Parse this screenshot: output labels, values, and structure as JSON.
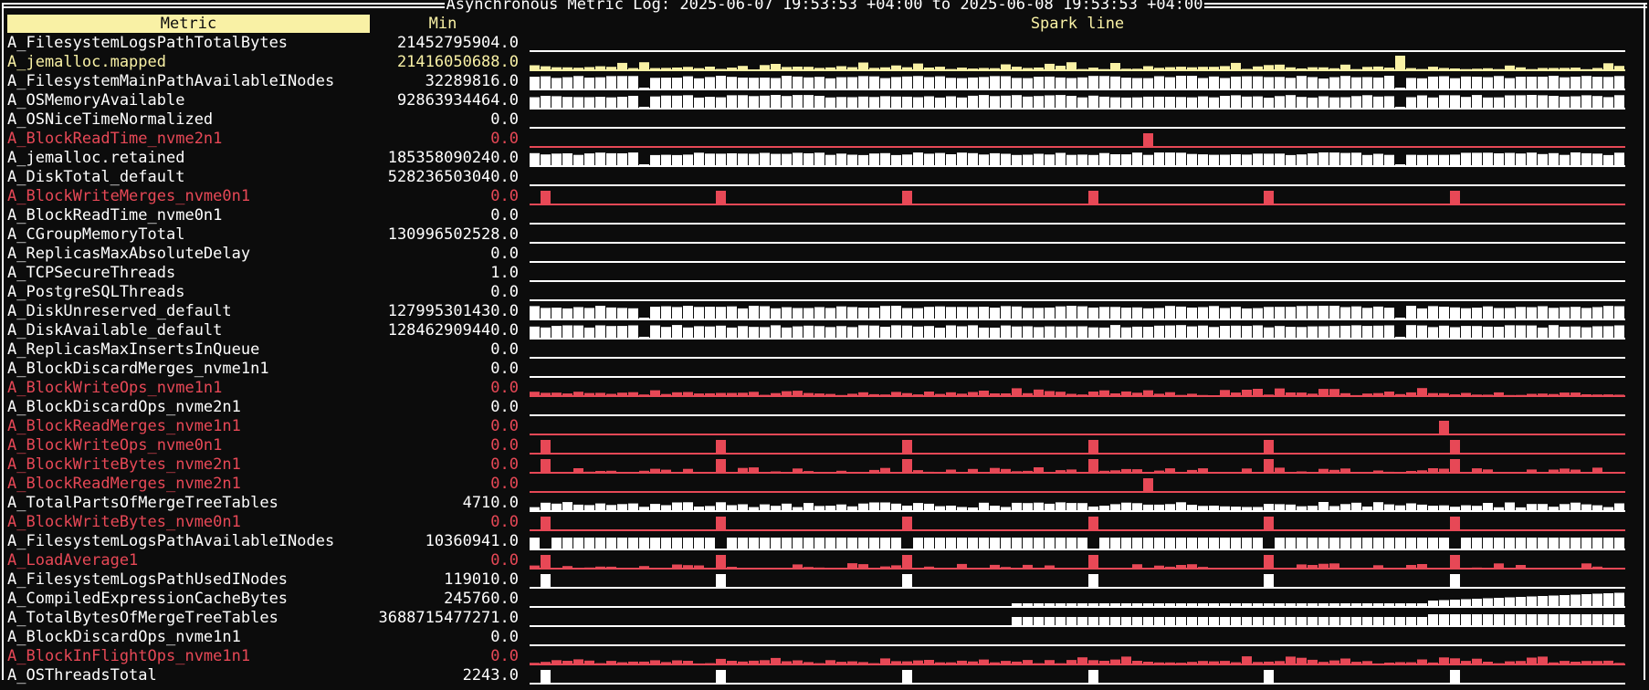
{
  "window": {
    "title": "Asynchronous Metric Log: 2025-06-07 19:53:53 +04:00 to 2025-06-08 19:53:53 +04:00"
  },
  "columns": {
    "metric": "Metric",
    "min": "Min",
    "spark": "Spark line"
  },
  "colors": {
    "background": "#0c0c0c",
    "white": "#ffffff",
    "red": "#e74856",
    "yellow": "#f9f1a5"
  },
  "rows": [
    {
      "name": "A_FilesystemLogsPathTotalBytes",
      "min": "21452795904.0",
      "color": "white",
      "spark": "flat"
    },
    {
      "name": "A_jemalloc.mapped",
      "min": "21416050688.0",
      "color": "yellow",
      "spark": "noise-low-spike"
    },
    {
      "name": "A_FilesystemMainPathAvailableINodes",
      "min": "32289816.0",
      "color": "white",
      "spark": "full-dip"
    },
    {
      "name": "A_OSMemoryAvailable",
      "min": "92863934464.0",
      "color": "white",
      "spark": "full-dip"
    },
    {
      "name": "A_OSNiceTimeNormalized",
      "min": "0.0",
      "color": "white",
      "spark": "flat"
    },
    {
      "name": "A_BlockReadTime_nvme2n1",
      "min": "0.0",
      "color": "red",
      "spark": "single-spike"
    },
    {
      "name": "A_jemalloc.retained",
      "min": "185358090240.0",
      "color": "white",
      "spark": "full-dip"
    },
    {
      "name": "A_DiskTotal_default",
      "min": "528236503040.0",
      "color": "white",
      "spark": "flat"
    },
    {
      "name": "A_BlockWriteMerges_nvme0n1",
      "min": "0.0",
      "color": "red",
      "spark": "periodic-spikes"
    },
    {
      "name": "A_BlockReadTime_nvme0n1",
      "min": "0.0",
      "color": "white",
      "spark": "flat"
    },
    {
      "name": "A_CGroupMemoryTotal",
      "min": "130996502528.0",
      "color": "white",
      "spark": "flat"
    },
    {
      "name": "A_ReplicasMaxAbsoluteDelay",
      "min": "0.0",
      "color": "white",
      "spark": "flat"
    },
    {
      "name": "A_TCPSecureThreads",
      "min": "1.0",
      "color": "white",
      "spark": "flat"
    },
    {
      "name": "A_PostgreSQLThreads",
      "min": "0.0",
      "color": "white",
      "spark": "flat"
    },
    {
      "name": "A_DiskUnreserved_default",
      "min": "127995301430.0",
      "color": "white",
      "spark": "full-dip"
    },
    {
      "name": "A_DiskAvailable_default",
      "min": "128462909440.0",
      "color": "white",
      "spark": "full-dip"
    },
    {
      "name": "A_ReplicasMaxInsertsInQueue",
      "min": "0.0",
      "color": "white",
      "spark": "flat"
    },
    {
      "name": "A_BlockDiscardMerges_nvme1n1",
      "min": "0.0",
      "color": "white",
      "spark": "flat"
    },
    {
      "name": "A_BlockWriteOps_nvme1n1",
      "min": "0.0",
      "color": "red",
      "spark": "noise"
    },
    {
      "name": "A_BlockDiscardOps_nvme2n1",
      "min": "0.0",
      "color": "white",
      "spark": "flat"
    },
    {
      "name": "A_BlockReadMerges_nvme1n1",
      "min": "0.0",
      "color": "red",
      "spark": "single-spike-late"
    },
    {
      "name": "A_BlockWriteOps_nvme0n1",
      "min": "0.0",
      "color": "red",
      "spark": "periodic-spikes"
    },
    {
      "name": "A_BlockWriteBytes_nvme2n1",
      "min": "0.0",
      "color": "red",
      "spark": "noise-sparse"
    },
    {
      "name": "A_BlockReadMerges_nvme2n1",
      "min": "0.0",
      "color": "red",
      "spark": "single-spike"
    },
    {
      "name": "A_TotalPartsOfMergeTreeTables",
      "min": "4710.0",
      "color": "white",
      "spark": "noise-mid"
    },
    {
      "name": "A_BlockWriteBytes_nvme0n1",
      "min": "0.0",
      "color": "red",
      "spark": "periodic-spikes"
    },
    {
      "name": "A_FilesystemLogsPathAvailableINodes",
      "min": "10360941.0",
      "color": "white",
      "spark": "full-periodic-dip"
    },
    {
      "name": "A_LoadAverage1",
      "min": "0.0",
      "color": "red",
      "spark": "noise-sparse"
    },
    {
      "name": "A_FilesystemLogsPathUsedINodes",
      "min": "119010.0",
      "color": "white",
      "spark": "periodic-spikes"
    },
    {
      "name": "A_CompiledExpressionCacheBytes",
      "min": "245760.0",
      "color": "white",
      "spark": "step-up"
    },
    {
      "name": "A_TotalBytesOfMergeTreeTables",
      "min": "3688715477271.0",
      "color": "white",
      "spark": "step-up-big"
    },
    {
      "name": "A_BlockDiscardOps_nvme1n1",
      "min": "0.0",
      "color": "white",
      "spark": "flat"
    },
    {
      "name": "A_BlockInFlightOps_nvme1n1",
      "min": "0.0",
      "color": "red",
      "spark": "noise"
    },
    {
      "name": "A_OSThreadsTotal",
      "min": "2243.0",
      "color": "white",
      "spark": "periodic-spikes"
    }
  ]
}
